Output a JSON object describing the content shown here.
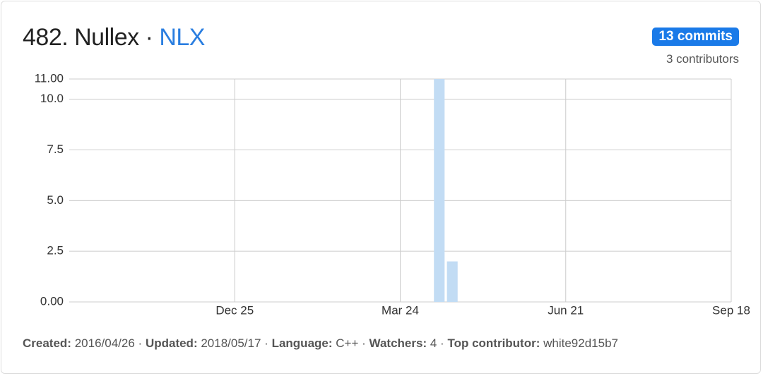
{
  "header": {
    "title": "482. Nullex",
    "symbol": "NLX",
    "separator": "·",
    "commits": "13 commits",
    "contributors": "3 contributors"
  },
  "chart_data": {
    "type": "bar",
    "x": [
      "Apr 14",
      "Apr 21"
    ],
    "values": [
      11,
      2
    ],
    "color": "#c2dcf4",
    "xlim": [
      "Sep 27",
      "Sep 18"
    ],
    "xticks": [
      "Dec 25",
      "Mar 24",
      "Jun 21",
      "Sep 18"
    ],
    "ylim": [
      0,
      11
    ],
    "yticks": [
      {
        "value": 0,
        "label": "0.00"
      },
      2.5,
      {
        "value": 5,
        "label": "5.0"
      },
      7.5,
      {
        "value": 10,
        "label": "10.0"
      },
      {
        "value": 11,
        "label": "11.00"
      }
    ],
    "grid": true
  },
  "footer": [
    {
      "label": "Created:",
      "value": "2016/04/26"
    },
    {
      "label": "Updated:",
      "value": "2018/05/17"
    },
    {
      "label": "Language:",
      "value": "C++"
    },
    {
      "label": "Watchers:",
      "value": "4"
    },
    {
      "label": "Top contributor:",
      "value": "white92d15b7"
    }
  ]
}
